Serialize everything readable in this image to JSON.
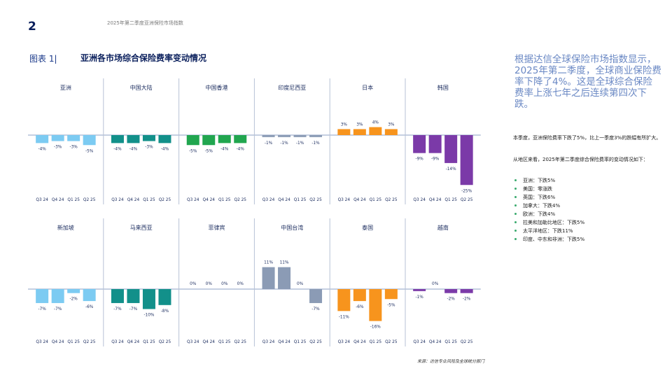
{
  "page": {
    "number": "2",
    "report_title": "2025年第二季度亚洲保险市场指数"
  },
  "figure": {
    "label": "图表 1|",
    "title": "亚洲各市场综合保险费率变动情况"
  },
  "sidebar": {
    "summary": "根据达信全球保险市场指数显示，2025年第二季度，全球商业保险费率下降了4%。这是全球综合保险费率上涨七年之后连续第四次下跌。",
    "detail_1": "本季度，亚洲保险费率下跌了5%，比上一季度3%的跌幅有所扩大。",
    "detail_2": "从地区来看，2025年第二季度综合保险费率的变动情况如下：",
    "bullets": [
      "亚洲：下跌5%",
      "美国：零涨跌",
      "英国：下跌6%",
      "加拿大：下跌4%",
      "欧洲：下跌4%",
      "拉美和加勒比地区：下跌5%",
      "太平洋地区：下跌11%",
      "印度、中东和非洲：下跌5%"
    ]
  },
  "source": "来源：达信专业风险及全球统分部门",
  "colors": {
    "axis": "#8ea2c4",
    "divider": "#b7c2d6",
    "label": "#1a2b5e",
    "bullet": "#3aaa6e"
  },
  "chart_data": {
    "type": "bar",
    "categories": [
      "Q3 24",
      "Q4 24",
      "Q1 25",
      "Q2 25"
    ],
    "value_unit": "%",
    "panels": [
      {
        "name": "亚洲",
        "color": "#7ccbf2",
        "values": [
          -4,
          -3,
          -3,
          -5
        ]
      },
      {
        "name": "中国大陆",
        "color": "#12908a",
        "values": [
          -4,
          -4,
          -3,
          -4
        ]
      },
      {
        "name": "中国香港",
        "color": "#21a64f",
        "values": [
          -5,
          -5,
          -4,
          -4
        ]
      },
      {
        "name": "印度尼西亚",
        "color": "#8b9bb5",
        "values": [
          -1,
          -1,
          -1,
          -1
        ]
      },
      {
        "name": "日本",
        "color": "#f7941d",
        "values": [
          3,
          3,
          4,
          3
        ]
      },
      {
        "name": "韩国",
        "color": "#7b3aa8",
        "values": [
          -9,
          -9,
          -14,
          -25
        ]
      },
      {
        "name": "新加坡",
        "color": "#7ccbf2",
        "values": [
          -7,
          -7,
          -2,
          -6
        ]
      },
      {
        "name": "马来西亚",
        "color": "#12908a",
        "values": [
          -7,
          -7,
          -10,
          -8
        ]
      },
      {
        "name": "菲律宾",
        "color": "#21a64f",
        "values": [
          0,
          0,
          0,
          0
        ]
      },
      {
        "name": "中国台湾",
        "color": "#8b9bb5",
        "values": [
          11,
          11,
          0,
          -7
        ]
      },
      {
        "name": "泰国",
        "color": "#f7941d",
        "values": [
          -11,
          -6,
          -16,
          -5
        ]
      },
      {
        "name": "越南",
        "color": "#7b3aa8",
        "values": [
          -1,
          0,
          -2,
          -2
        ]
      }
    ]
  }
}
